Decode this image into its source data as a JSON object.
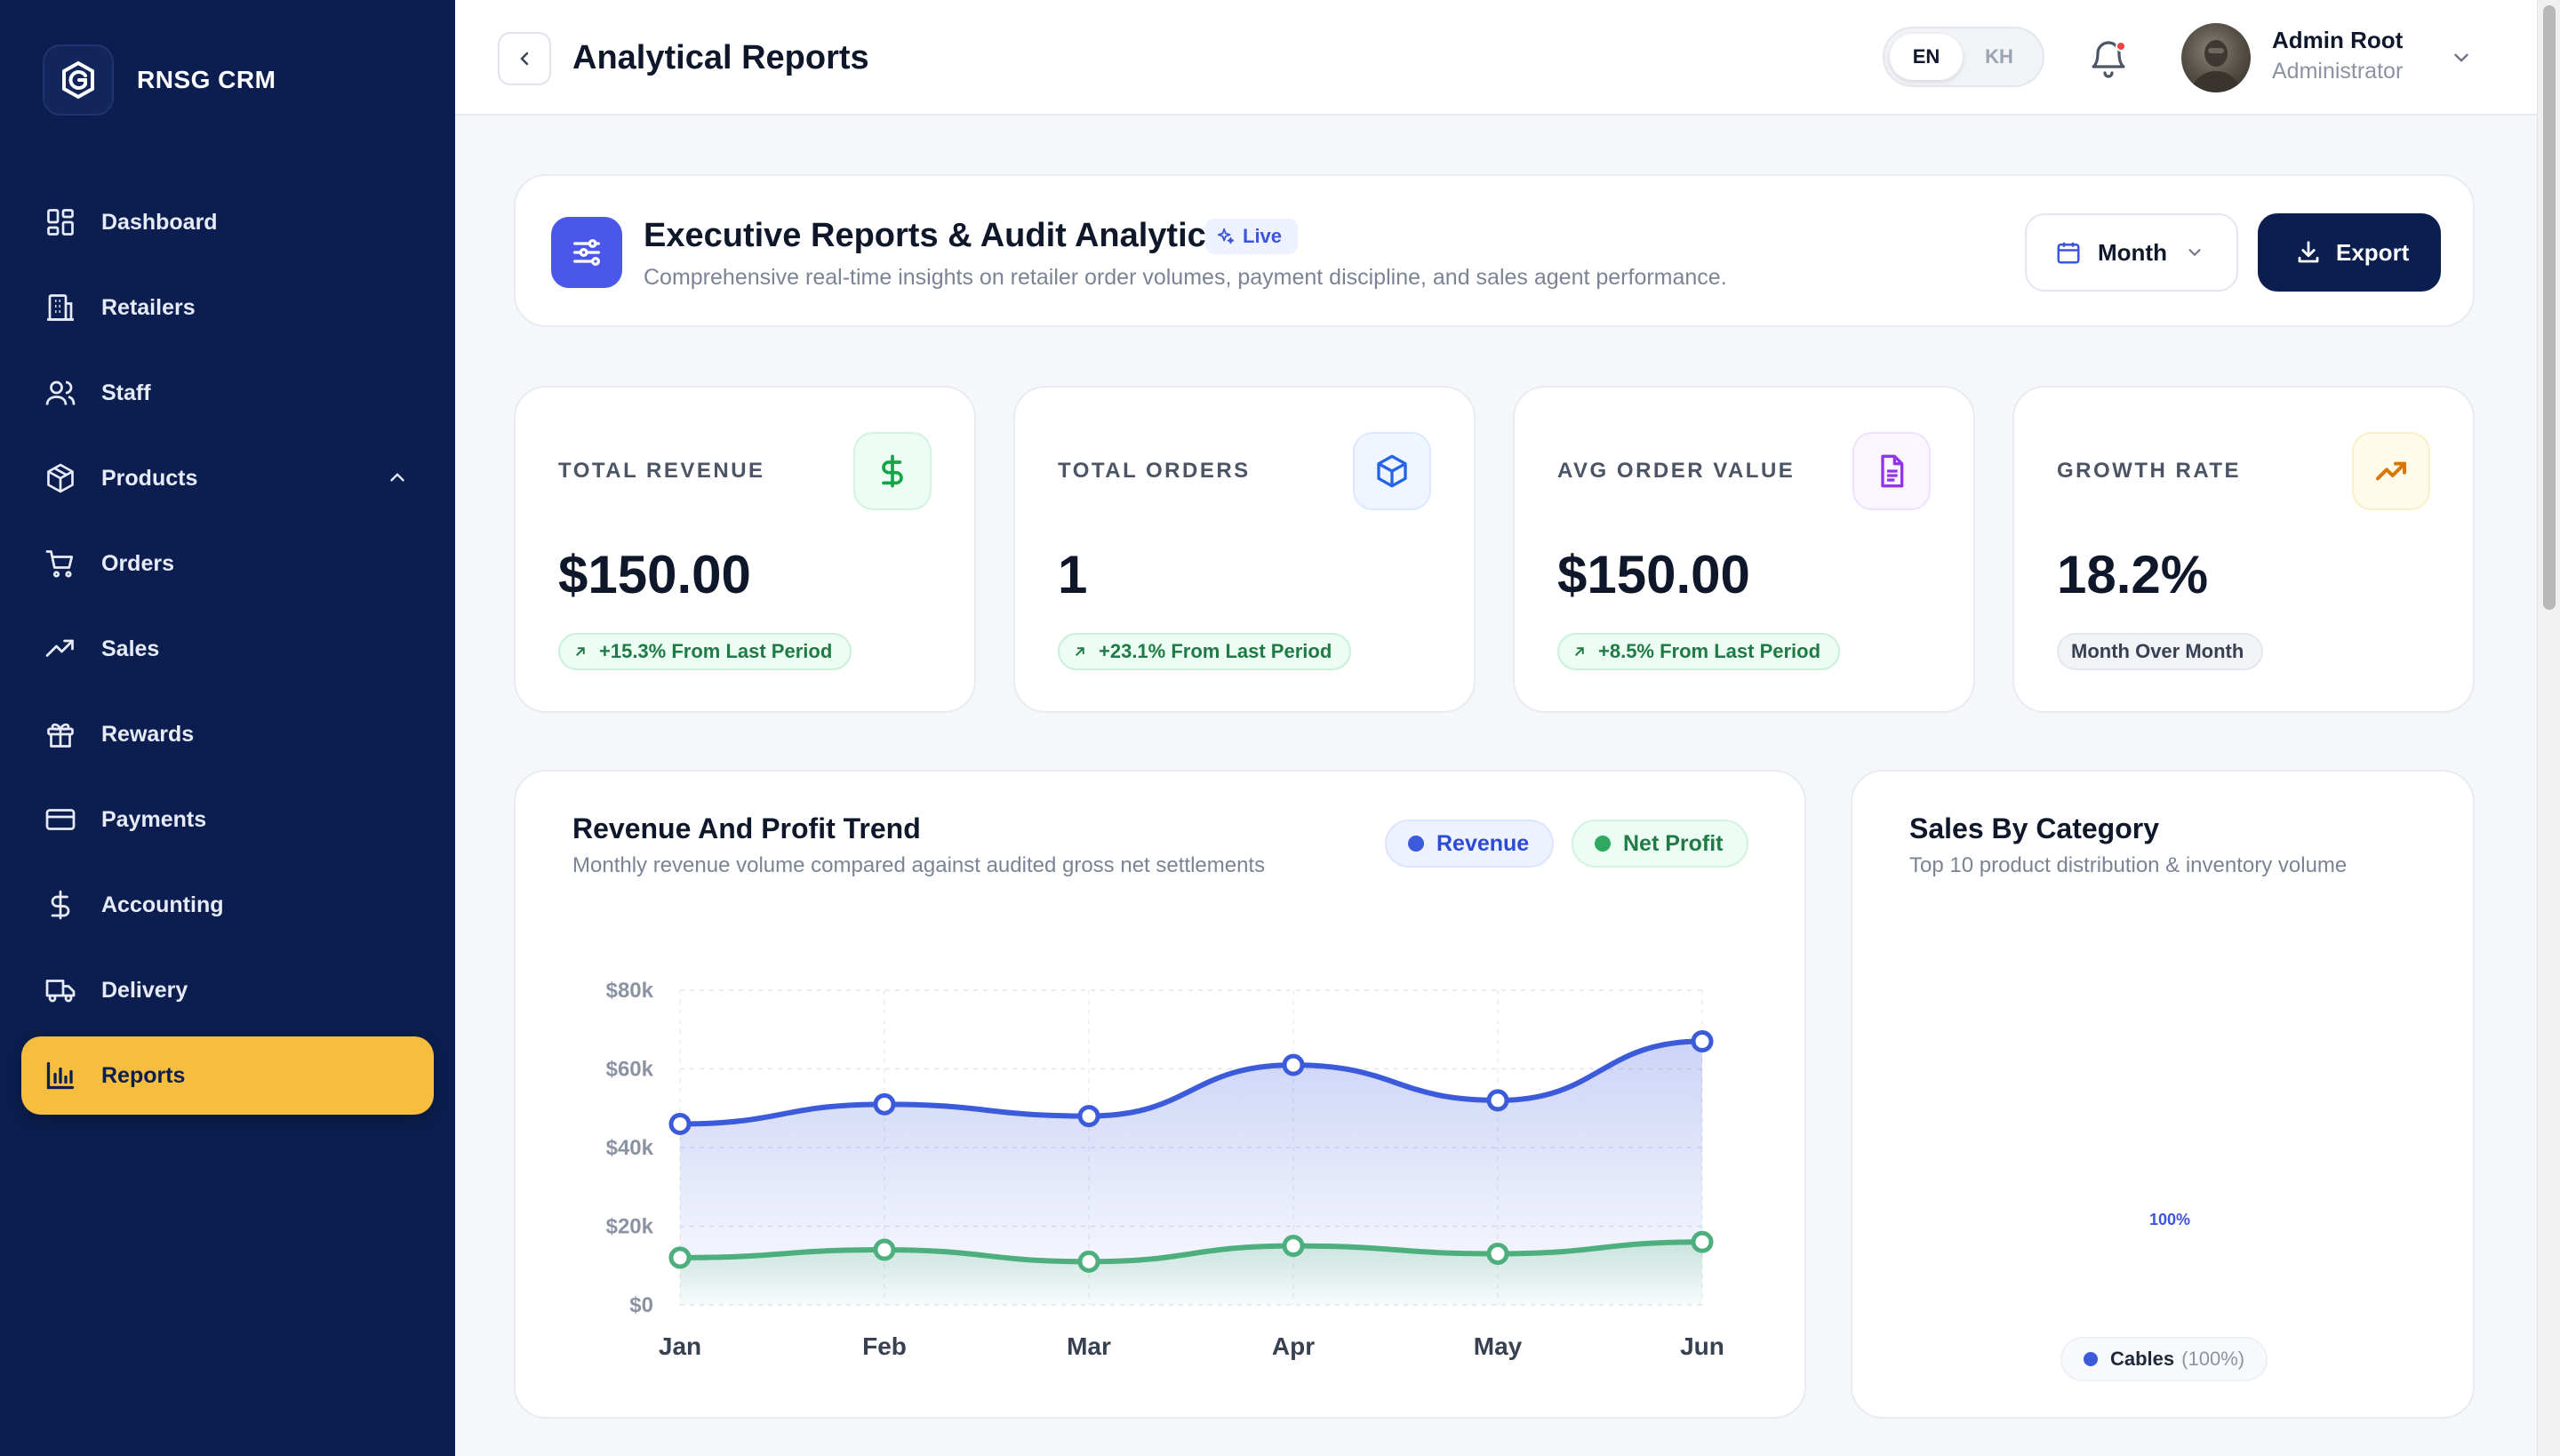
{
  "brand": {
    "name": "RNSG CRM"
  },
  "sidebar": {
    "items": [
      {
        "label": "Dashboard",
        "icon": "dashboard-grid-icon"
      },
      {
        "label": "Retailers",
        "icon": "building-icon"
      },
      {
        "label": "Staff",
        "icon": "users-icon"
      },
      {
        "label": "Products",
        "icon": "box-icon",
        "expanded": true
      },
      {
        "label": "Orders",
        "icon": "cart-icon"
      },
      {
        "label": "Sales",
        "icon": "trending-up-icon"
      },
      {
        "label": "Rewards",
        "icon": "gift-icon"
      },
      {
        "label": "Payments",
        "icon": "credit-card-icon"
      },
      {
        "label": "Accounting",
        "icon": "dollar-icon"
      },
      {
        "label": "Delivery",
        "icon": "truck-icon"
      },
      {
        "label": "Reports",
        "icon": "bar-chart-icon",
        "active": true
      }
    ]
  },
  "topbar": {
    "title": "Analytical Reports",
    "lang": {
      "en": "EN",
      "kh": "KH",
      "selected": "EN"
    },
    "user": {
      "name": "Admin Root",
      "role": "Administrator"
    }
  },
  "header": {
    "title": "Executive Reports & Audit Analytics",
    "badge": "Live",
    "subtitle": "Comprehensive real-time insights on retailer order volumes, payment discipline, and sales agent performance.",
    "period": "Month",
    "export_label": "Export"
  },
  "kpis": [
    {
      "label": "TOTAL REVENUE",
      "value": "$150.00",
      "badge": "+15.3% From Last Period",
      "icon": "dollar-icon",
      "accent": "#16a34a"
    },
    {
      "label": "TOTAL ORDERS",
      "value": "1",
      "badge": "+23.1% From Last Period",
      "icon": "package-icon",
      "accent": "#2563eb"
    },
    {
      "label": "AVG ORDER VALUE",
      "value": "$150.00",
      "badge": "+8.5% From Last Period",
      "icon": "document-icon",
      "accent": "#9333ea"
    },
    {
      "label": "GROWTH RATE",
      "value": "18.2%",
      "badge": "Month Over Month",
      "icon": "trend-up-icon",
      "accent": "#d97706"
    }
  ],
  "trend": {
    "title": "Revenue And Profit Trend",
    "subtitle": "Monthly revenue volume compared against audited gross net settlements",
    "legend": {
      "revenue": "Revenue",
      "net_profit": "Net Profit"
    }
  },
  "category": {
    "title": "Sales By Category",
    "subtitle": "Top 10 product distribution & inventory volume",
    "center_label": "100%",
    "legend": [
      {
        "name": "Cables",
        "pct": "(100%)",
        "color": "#3b5bdb"
      }
    ]
  },
  "chart_data": {
    "type": "area",
    "categories": [
      "Jan",
      "Feb",
      "Mar",
      "Apr",
      "May",
      "Jun"
    ],
    "series": [
      {
        "name": "Revenue",
        "values": [
          46000,
          51000,
          48000,
          61000,
          52000,
          67000
        ],
        "color": "#3b5bdb"
      },
      {
        "name": "Net Profit",
        "values": [
          12000,
          14000,
          11000,
          15000,
          13000,
          16000
        ],
        "color": "#4caf7d"
      }
    ],
    "yticks": [
      "$0",
      "$20k",
      "$40k",
      "$60k",
      "$80k"
    ],
    "ylim": [
      0,
      80000
    ],
    "grid": true
  }
}
